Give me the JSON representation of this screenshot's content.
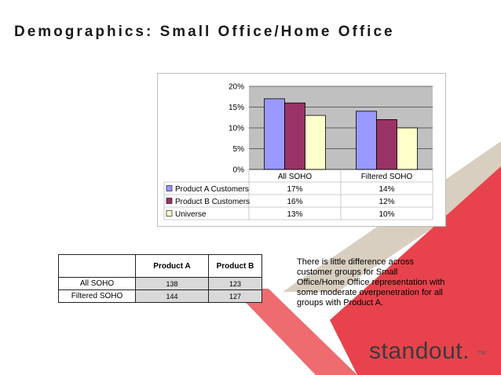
{
  "slide": {
    "title": "Demographics: Small Office/Home Office",
    "note": "There is little difference across customer groups for Small Office/Home Office representation with some moderate overpenetration for all groups with Product A.",
    "brand": "standout.",
    "trademark": "TM"
  },
  "colors": {
    "series_a": "#9999ff",
    "series_b": "#993366",
    "series_c": "#ffffcc",
    "plot_bg": "#c0c0c0",
    "decor_red": "#e8434c",
    "decor_beige": "#d8cfc0"
  },
  "chart_data": {
    "type": "bar",
    "categories": [
      "All SOHO",
      "Filtered SOHO"
    ],
    "series": [
      {
        "name": "Product A Customers",
        "values": [
          17,
          14
        ]
      },
      {
        "name": "Product B Customers",
        "values": [
          16,
          12
        ]
      },
      {
        "name": "Universe",
        "values": [
          13,
          10
        ]
      }
    ],
    "data_table": [
      [
        "17%",
        "14%"
      ],
      [
        "16%",
        "12%"
      ],
      [
        "13%",
        "10%"
      ]
    ],
    "yticks": [
      "0%",
      "5%",
      "10%",
      "15%",
      "20%"
    ],
    "ylim": [
      0,
      20
    ],
    "unit": "%",
    "legend": "data-table-left",
    "grid": true
  },
  "table": {
    "headers": [
      "",
      "Product A",
      "Product B"
    ],
    "rows": [
      {
        "label": "All SOHO",
        "a": "138",
        "b": "123"
      },
      {
        "label": "Filtered SOHO",
        "a": "144",
        "b": "127"
      }
    ]
  }
}
